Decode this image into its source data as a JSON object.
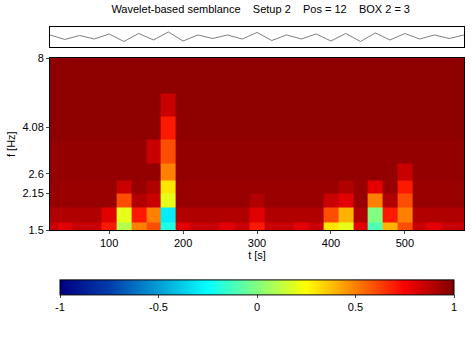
{
  "chart_data": [
    {
      "type": "line",
      "title": "Wavelet-based semblance    Setup 2    Pos = 12    BOX 2 = 3",
      "x": [
        20,
        40,
        60,
        80,
        100,
        120,
        140,
        160,
        180,
        200,
        220,
        240,
        260,
        280,
        300,
        320,
        340,
        360,
        380,
        400,
        420,
        440,
        460,
        480,
        500,
        520,
        540,
        560,
        580
      ],
      "values": [
        0.2,
        -0.25,
        0.15,
        -0.2,
        0.3,
        -0.45,
        0.35,
        -0.3,
        0.5,
        -0.4,
        0.2,
        -0.15,
        0.2,
        -0.2,
        0.45,
        -0.35,
        0.2,
        -0.2,
        0.3,
        -0.4,
        0.35,
        -0.45,
        0.4,
        -0.3,
        0.35,
        -0.2,
        0.2,
        -0.15,
        0.2
      ],
      "color": "#808080",
      "xlim": [
        20,
        580
      ],
      "ylim": [
        -1,
        1
      ],
      "tick_labels": false
    },
    {
      "type": "heatmap",
      "x_label": "t [s]",
      "y_label": "f [Hz]",
      "x": [
        20,
        40,
        60,
        80,
        100,
        120,
        140,
        160,
        180,
        200,
        220,
        240,
        260,
        280,
        300,
        320,
        340,
        360,
        380,
        400,
        420,
        440,
        460,
        480,
        500,
        520,
        540,
        560,
        580
      ],
      "y": [
        1.5,
        1.75,
        2.0,
        2.3,
        2.6,
        3.2,
        4.08,
        5,
        6.5,
        8
      ],
      "cells": [
        [
          0.85,
          0.8,
          0.85,
          0.85,
          0.7,
          0.1,
          0.5,
          0.6,
          -0.2,
          0.8,
          0.85,
          0.85,
          0.8,
          0.85,
          0.7,
          0.85,
          0.85,
          0.8,
          0.85,
          0.3,
          0.2,
          0.8,
          -0.1,
          0.4,
          0.6,
          0.85,
          0.8,
          0.85,
          0.85
        ],
        [
          0.9,
          0.9,
          0.9,
          0.9,
          0.8,
          0.2,
          0.7,
          0.5,
          -0.3,
          0.9,
          0.9,
          0.9,
          0.9,
          0.9,
          0.8,
          0.9,
          0.9,
          0.9,
          0.9,
          0.6,
          0.4,
          0.9,
          0.0,
          0.7,
          0.5,
          0.9,
          0.9,
          0.9,
          0.9
        ],
        [
          0.95,
          0.95,
          0.95,
          0.95,
          0.95,
          0.6,
          0.9,
          0.85,
          0.2,
          0.95,
          0.95,
          0.95,
          0.95,
          0.95,
          0.9,
          0.95,
          0.95,
          0.95,
          0.95,
          0.85,
          0.8,
          0.95,
          0.5,
          0.9,
          0.6,
          0.95,
          0.95,
          0.95,
          0.95
        ],
        [
          0.95,
          0.95,
          0.95,
          0.95,
          0.95,
          0.85,
          0.95,
          0.9,
          0.3,
          0.95,
          0.95,
          0.95,
          0.95,
          0.95,
          0.95,
          0.95,
          0.95,
          0.95,
          0.95,
          0.95,
          0.9,
          0.95,
          0.8,
          0.95,
          0.7,
          0.95,
          0.95,
          0.95,
          0.95
        ],
        [
          0.96,
          0.96,
          0.96,
          0.96,
          0.96,
          0.96,
          0.96,
          0.96,
          0.5,
          0.96,
          0.96,
          0.96,
          0.96,
          0.96,
          0.96,
          0.96,
          0.96,
          0.96,
          0.96,
          0.96,
          0.96,
          0.96,
          0.96,
          0.96,
          0.85,
          0.96,
          0.96,
          0.96,
          0.96
        ],
        [
          0.96,
          0.96,
          0.96,
          0.96,
          0.96,
          0.96,
          0.96,
          0.85,
          0.6,
          0.96,
          0.96,
          0.96,
          0.96,
          0.96,
          0.96,
          0.96,
          0.96,
          0.96,
          0.96,
          0.96,
          0.96,
          0.96,
          0.96,
          0.96,
          0.96,
          0.96,
          0.96,
          0.96,
          0.96
        ],
        [
          0.97,
          0.97,
          0.97,
          0.97,
          0.97,
          0.97,
          0.97,
          0.97,
          0.7,
          0.97,
          0.97,
          0.97,
          0.97,
          0.97,
          0.97,
          0.97,
          0.97,
          0.97,
          0.97,
          0.97,
          0.97,
          0.97,
          0.97,
          0.97,
          0.97,
          0.97,
          0.97,
          0.97,
          0.97
        ],
        [
          0.97,
          0.97,
          0.97,
          0.97,
          0.97,
          0.97,
          0.97,
          0.97,
          0.85,
          0.97,
          0.97,
          0.97,
          0.97,
          0.97,
          0.97,
          0.97,
          0.97,
          0.97,
          0.97,
          0.97,
          0.97,
          0.97,
          0.97,
          0.97,
          0.97,
          0.97,
          0.97,
          0.97,
          0.97
        ],
        [
          0.97,
          0.97,
          0.97,
          0.97,
          0.97,
          0.97,
          0.97,
          0.97,
          0.97,
          0.97,
          0.97,
          0.97,
          0.97,
          0.97,
          0.97,
          0.97,
          0.97,
          0.97,
          0.97,
          0.97,
          0.97,
          0.97,
          0.97,
          0.97,
          0.97,
          0.97,
          0.97,
          0.97,
          0.97
        ],
        [
          0.97,
          0.97,
          0.97,
          0.97,
          0.97,
          0.97,
          0.97,
          0.97,
          0.97,
          0.97,
          0.97,
          0.97,
          0.97,
          0.97,
          0.97,
          0.97,
          0.97,
          0.97,
          0.97,
          0.97,
          0.97,
          0.97,
          0.97,
          0.97,
          0.97,
          0.97,
          0.97,
          0.97,
          0.97
        ]
      ],
      "xlim": [
        20,
        580
      ],
      "xticks": [
        100,
        200,
        300,
        400,
        500
      ],
      "ylim": [
        1.5,
        8
      ],
      "yticks": [
        1.5,
        2.15,
        2.6,
        4.08,
        8
      ],
      "log": "y",
      "zlim": [
        -1,
        1
      ],
      "zticks": [
        -1,
        -0.5,
        0,
        0.5,
        1
      ]
    }
  ]
}
